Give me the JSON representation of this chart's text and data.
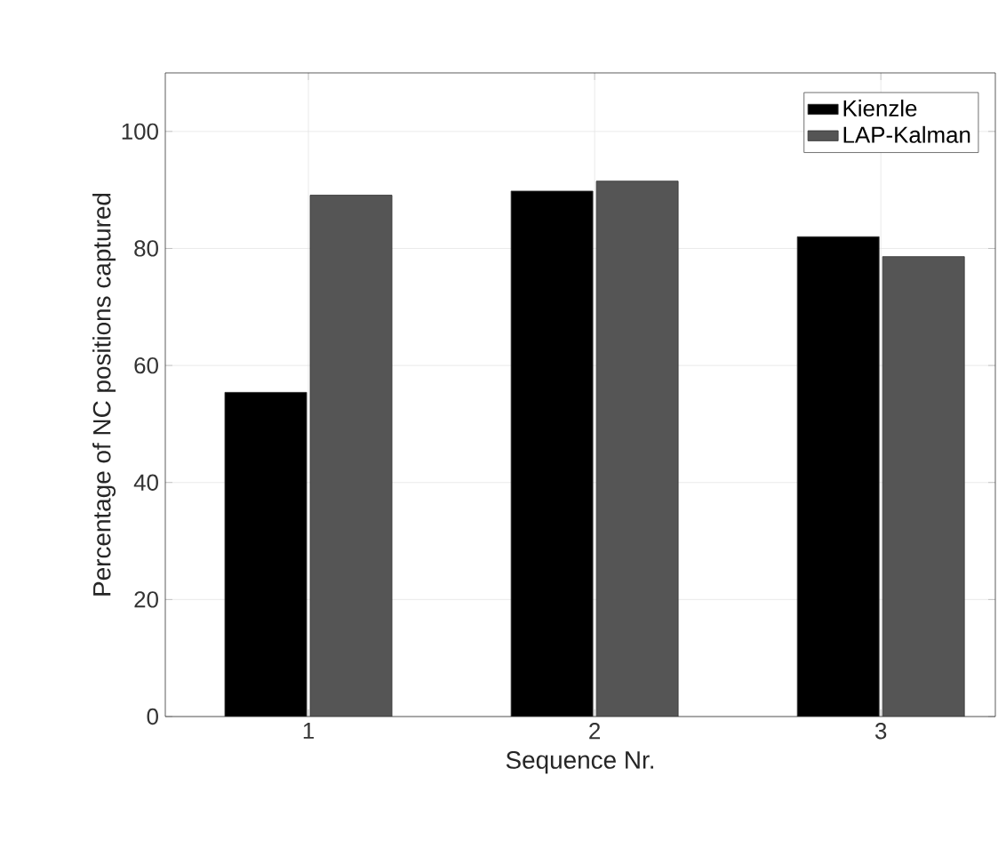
{
  "chart_data": {
    "type": "bar",
    "xlabel": "Sequence Nr.",
    "ylabel": "Percentage of NC positions captured",
    "categories": [
      "1",
      "2",
      "3"
    ],
    "series": [
      {
        "name": "Kienzle",
        "color": "#000000",
        "values": [
          55.4,
          89.8,
          82.0
        ]
      },
      {
        "name": "LAP-Kalman",
        "color": "#555555",
        "values": [
          89.1,
          91.5,
          78.6
        ]
      }
    ],
    "ylim": [
      0,
      110
    ],
    "yticks": [
      0,
      20,
      40,
      60,
      80,
      100
    ],
    "grid": true,
    "legend": "top right"
  }
}
